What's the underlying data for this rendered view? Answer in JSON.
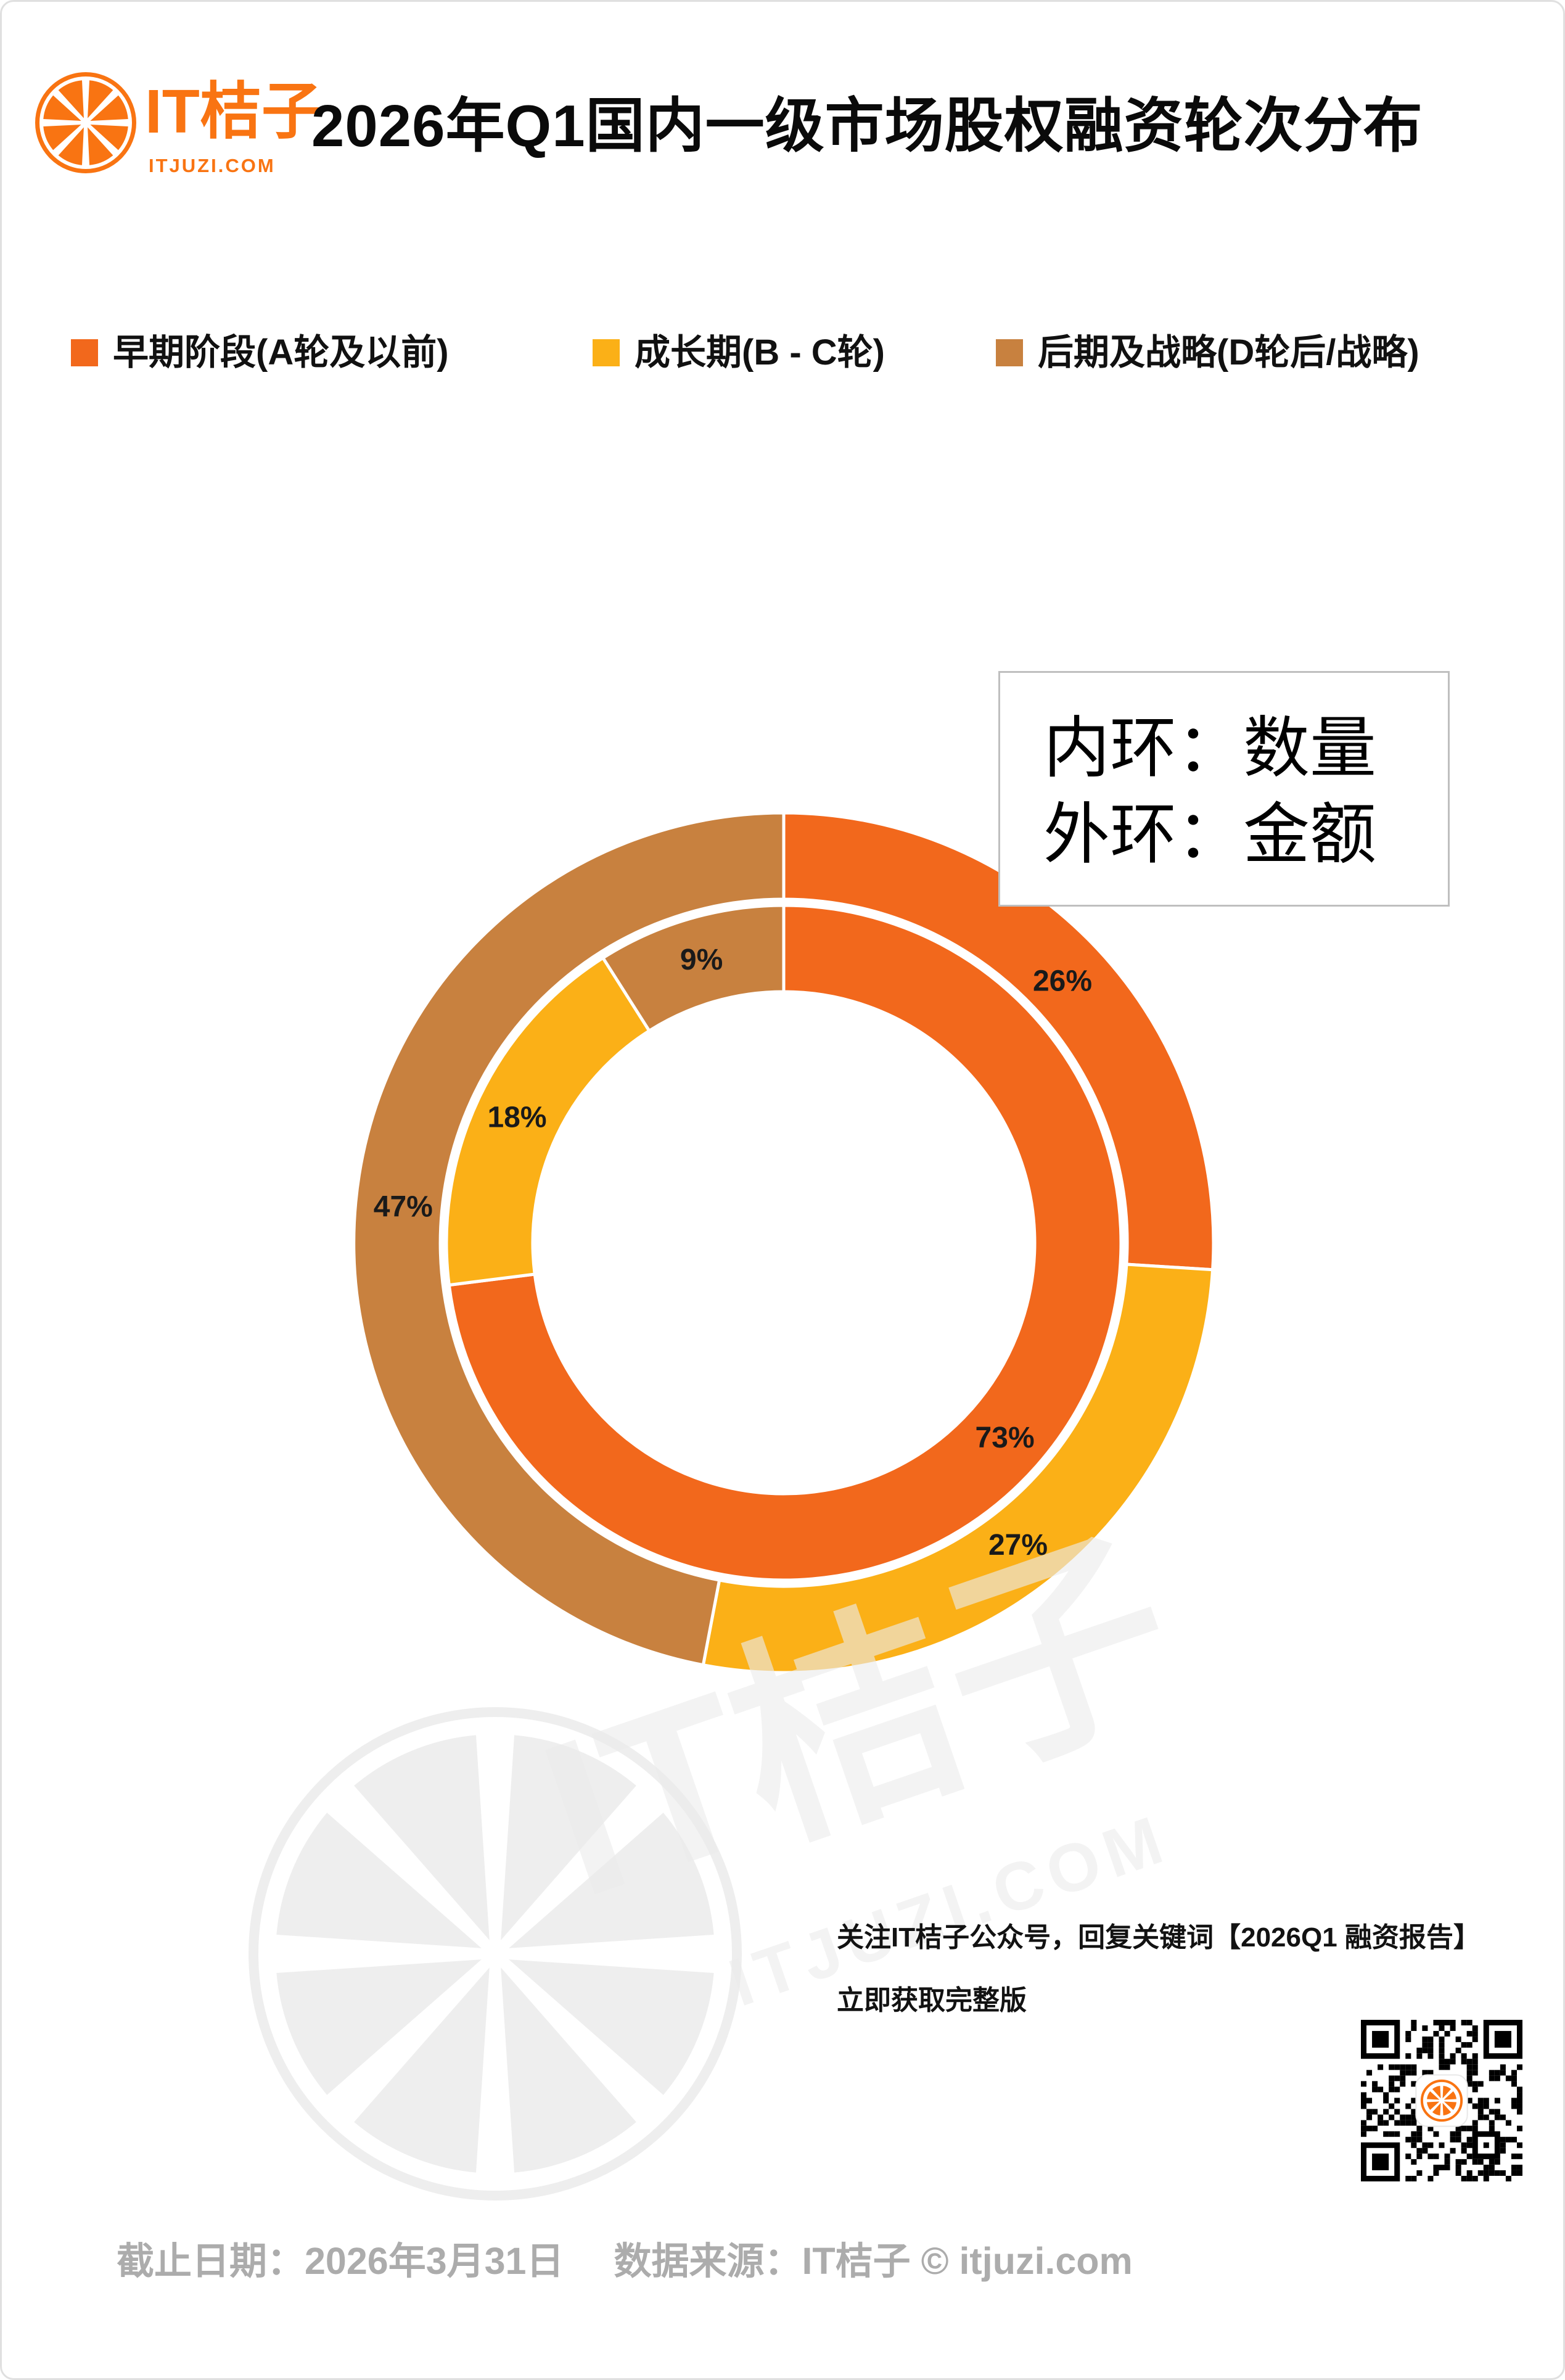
{
  "header": {
    "brand": "IT桔子",
    "brand_domain": "ITJUZI.COM",
    "title": "2026年Q1国内一级市场股权融资轮次分布"
  },
  "legend": [
    {
      "label": "早期阶段(A轮及以前)",
      "color": "#F2681C"
    },
    {
      "label": "成长期(B - C轮)",
      "color": "#FBB017"
    },
    {
      "label": "后期及战略(D轮后/战略)",
      "color": "#C8813F"
    }
  ],
  "annotation": {
    "line1": "内环：数量",
    "line2": "外环：金额"
  },
  "chart_data": {
    "type": "pie",
    "subtype": "nested-donut",
    "title": "2026年Q1国内一级市场股权融资轮次分布",
    "categories": [
      "早期阶段(A轮及以前)",
      "成长期(B - C轮)",
      "后期及战略(D轮后/战略)"
    ],
    "colors": [
      "#F2681C",
      "#FBB017",
      "#C8813F"
    ],
    "rings": [
      {
        "name": "内环：数量",
        "position": "inner",
        "values_pct": [
          73,
          18,
          9
        ]
      },
      {
        "name": "外环：金额",
        "position": "outer",
        "values_pct": [
          26,
          27,
          47
        ]
      }
    ],
    "start_angle_deg": 0,
    "direction": "clockwise",
    "label_format": "{value}%",
    "legend_position": "top",
    "grid": false
  },
  "watermark": {
    "brand": "IT桔子",
    "domain": "ITJUZI.COM"
  },
  "notice": {
    "line1": "关注IT桔子公众号，回复关键词【2026Q1 融资报告】",
    "line2": "立即获取完整版"
  },
  "footer": {
    "deadline": "截止日期：2026年3月31日",
    "source": "数据来源：IT桔子 © itjuzi.com"
  },
  "colors": {
    "early_stage_orange": "#F2681C",
    "growth_amber": "#FBB017",
    "late_brown": "#C8813F",
    "logo_orange": "#F97412",
    "footer_gray": "#ACACAC",
    "annotation_border": "#BFBFBF",
    "watermark_gray": "#ECECEC",
    "segment_separator": "#FFFFFF",
    "label_black": "#1A1A1A"
  }
}
